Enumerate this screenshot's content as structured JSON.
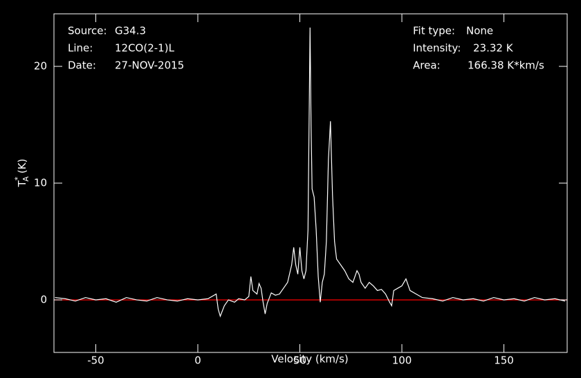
{
  "chart_data": {
    "type": "line",
    "info_left": [
      {
        "key": "Source:",
        "value": "G34.3"
      },
      {
        "key": "Line:",
        "value": "12CO(2-1)L"
      },
      {
        "key": "Date:",
        "value": "27-NOV-2015"
      }
    ],
    "info_right": [
      {
        "key": "Fit type:",
        "value": "None"
      },
      {
        "key": "Intensity:",
        "value": "23.32 K"
      },
      {
        "key": "Area:",
        "value": "166.38 K*km/s"
      }
    ],
    "xlabel": "Velocity (km/s)",
    "ylabel": {
      "symbol": "T",
      "superscript": "*",
      "subscript": "A",
      "unit": "(K)"
    },
    "xlim": [
      -70.5,
      181
    ],
    "ylim": [
      -4.5,
      24.5
    ],
    "xticks": [
      -50,
      0,
      50,
      100,
      150
    ],
    "yticks": [
      0,
      10,
      20
    ],
    "baseline": {
      "value": 0,
      "color": "#ff0000"
    },
    "series": [
      {
        "color": "#ffffff",
        "x": [
          -70,
          -65,
          -60,
          -55,
          -50,
          -45,
          -40,
          -35,
          -30,
          -25,
          -20,
          -15,
          -10,
          -5,
          0,
          5,
          9,
          10,
          11,
          13,
          15,
          18,
          20,
          23,
          25,
          26,
          27,
          29,
          30,
          31,
          32,
          33,
          34,
          36,
          38,
          40,
          42,
          44,
          46,
          47,
          48,
          49,
          50,
          51,
          52,
          53,
          54,
          55,
          55.5,
          56,
          57,
          58,
          59,
          60,
          61,
          62,
          63,
          64,
          65,
          66,
          67,
          68,
          70,
          72,
          74,
          76,
          78,
          79,
          80,
          82,
          84,
          86,
          88,
          90,
          92,
          94,
          95,
          96,
          98,
          100,
          102,
          104,
          107,
          110,
          115,
          120,
          125,
          130,
          135,
          140,
          145,
          150,
          155,
          160,
          165,
          170,
          175,
          180
        ],
        "values": [
          0.2,
          0.1,
          -0.1,
          0.2,
          0.0,
          0.1,
          -0.2,
          0.2,
          0.0,
          -0.1,
          0.2,
          0.0,
          -0.1,
          0.1,
          0.0,
          0.1,
          0.5,
          -0.8,
          -1.4,
          -0.5,
          0.0,
          -0.2,
          0.1,
          0.0,
          0.3,
          2.0,
          0.8,
          0.5,
          1.4,
          1.0,
          -0.2,
          -1.2,
          -0.3,
          0.6,
          0.4,
          0.5,
          1.0,
          1.5,
          3.0,
          4.5,
          3.0,
          2.2,
          4.5,
          2.5,
          1.8,
          2.5,
          6.0,
          23.32,
          15,
          9.5,
          8.8,
          6.0,
          2.0,
          -0.2,
          1.5,
          2.2,
          5.0,
          12.0,
          15.3,
          9.0,
          5.0,
          3.5,
          3.0,
          2.5,
          1.8,
          1.5,
          2.5,
          2.2,
          1.5,
          1.0,
          1.5,
          1.2,
          0.8,
          0.9,
          0.5,
          -0.2,
          -0.5,
          0.8,
          1.0,
          1.2,
          1.8,
          0.8,
          0.5,
          0.2,
          0.1,
          -0.1,
          0.2,
          0.0,
          0.1,
          -0.1,
          0.2,
          0.0,
          0.1,
          -0.1,
          0.2,
          0.0,
          0.1,
          -0.1
        ]
      }
    ]
  }
}
